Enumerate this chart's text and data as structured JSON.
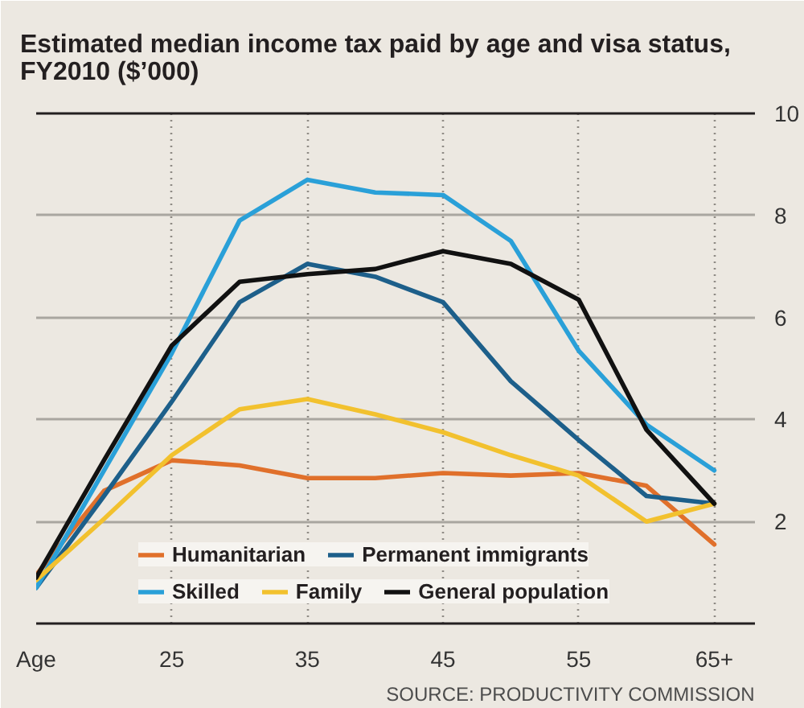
{
  "chart_data": {
    "type": "line",
    "title": "Estimated median income tax paid by age and visa status, FY2010 ($’000)",
    "x": [
      15,
      20,
      25,
      30,
      35,
      40,
      45,
      50,
      55,
      60,
      65
    ],
    "xlim": [
      15,
      68
    ],
    "xticks": [
      {
        "value": 15,
        "label": "Age"
      },
      25,
      35,
      45,
      55,
      {
        "value": 65,
        "label": "65+"
      }
    ],
    "ylim": [
      0,
      10
    ],
    "yticks": [
      2,
      4,
      6,
      8,
      10
    ],
    "grid": true,
    "legend": "bottom",
    "series": [
      {
        "name": "Humanitarian",
        "color": "#e0702b",
        "values": [
          0.95,
          2.6,
          3.2,
          3.1,
          2.85,
          2.85,
          2.95,
          2.9,
          2.95,
          2.7,
          1.55
        ]
      },
      {
        "name": "Permanent immigrants",
        "color": "#1d5f8a",
        "values": [
          0.7,
          2.5,
          4.35,
          6.3,
          7.05,
          6.8,
          6.3,
          4.75,
          3.6,
          2.5,
          2.35
        ]
      },
      {
        "name": "Skilled",
        "color": "#2aa0d8",
        "values": [
          0.7,
          3.0,
          5.3,
          7.9,
          8.7,
          8.45,
          8.4,
          7.5,
          5.35,
          3.9,
          3.0
        ]
      },
      {
        "name": "Family",
        "color": "#f2c12e",
        "values": [
          0.85,
          2.05,
          3.3,
          4.2,
          4.4,
          4.1,
          3.75,
          3.3,
          2.9,
          2.0,
          2.35
        ]
      },
      {
        "name": "General population",
        "color": "#111111",
        "values": [
          0.9,
          3.2,
          5.45,
          6.7,
          6.85,
          6.95,
          7.3,
          7.05,
          6.35,
          3.8,
          2.35
        ]
      }
    ],
    "annotations": [
      "SOURCE: PRODUCTIVITY COMMISSION"
    ]
  }
}
